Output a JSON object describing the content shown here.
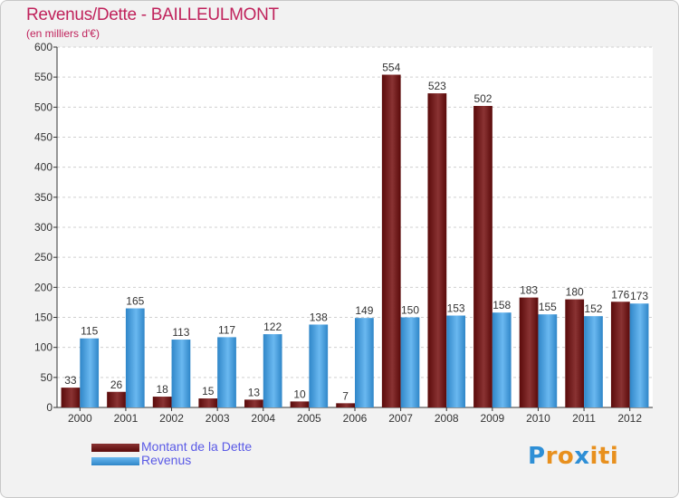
{
  "chart_title": "Revenus/Dette - BAILLEULMONT",
  "chart_subtitle": "(en milliers d'€)",
  "colors": {
    "title": "#c0235c",
    "dette_dark": "#5a0a0a",
    "dette_light": "#8a3333",
    "revenus_dark": "#2f86c8",
    "revenus_light": "#6ab8f0",
    "legend_text": "#5a5ae6"
  },
  "chart_data": {
    "type": "bar",
    "categories": [
      "2000",
      "2001",
      "2002",
      "2003",
      "2004",
      "2005",
      "2006",
      "2007",
      "2008",
      "2009",
      "2010",
      "2011",
      "2012"
    ],
    "series": [
      {
        "name": "Montant de la Dette",
        "values": [
          33,
          26,
          18,
          15,
          13,
          10,
          7,
          554,
          523,
          502,
          183,
          180,
          176
        ]
      },
      {
        "name": "Revenus",
        "values": [
          115,
          165,
          113,
          117,
          122,
          138,
          149,
          150,
          153,
          158,
          155,
          152,
          173
        ]
      }
    ],
    "ylim": [
      0,
      600
    ],
    "yticks": [
      "0",
      "50",
      "100",
      "150",
      "200",
      "250",
      "300",
      "350",
      "400",
      "450",
      "500",
      "550",
      "600"
    ],
    "grid": true,
    "legend_position": "bottom-left"
  },
  "legend": {
    "dette_label": "Montant de la Dette",
    "revenus_label": "Revenus"
  },
  "logo": {
    "text": "Proxiti",
    "letters": [
      "P",
      "r",
      "o",
      "x",
      "i",
      "t",
      "i"
    ],
    "letter_colors": [
      "#2e8fd6",
      "#e8901e",
      "#e8901e",
      "#2e8fd6",
      "#e8901e",
      "#e8901e",
      "#e8901e"
    ]
  }
}
